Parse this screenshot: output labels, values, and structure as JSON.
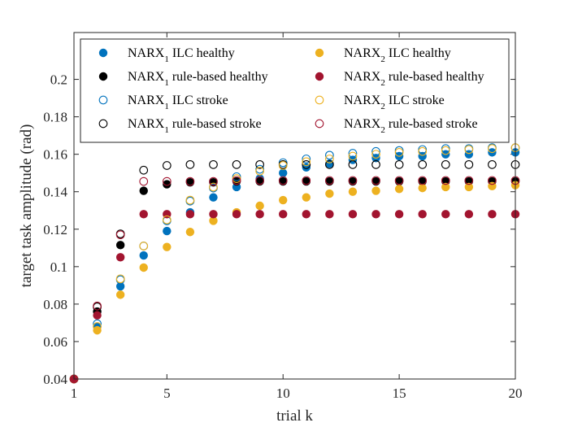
{
  "chart_data": {
    "type": "scatter",
    "title": "",
    "xlabel": "trial k",
    "ylabel": "target task amplitude (rad)",
    "xlim": [
      1,
      20
    ],
    "ylim": [
      0.04,
      0.225
    ],
    "xticks": [
      1,
      5,
      10,
      15,
      20
    ],
    "yticks": [
      0.04,
      0.06,
      0.08,
      0.1,
      0.12,
      0.14,
      0.16,
      0.18,
      0.2
    ],
    "ytick_labels": [
      "0.04",
      "0.06",
      "0.08",
      "0.1",
      "0.12",
      "0.14",
      "0.16",
      "0.18",
      "0.2"
    ],
    "grid": false,
    "legend_position": "top",
    "series": [
      {
        "name": "NARX1 ILC healthy",
        "legend_base": "NARX",
        "legend_sub": "1",
        "legend_rest": " ILC healthy",
        "color": "#0072BD",
        "marker": "filled",
        "x": [
          1,
          2,
          3,
          4,
          5,
          6,
          7,
          8,
          9,
          10,
          11,
          12,
          13,
          14,
          15,
          16,
          17,
          18,
          19,
          20
        ],
        "y": [
          0.04,
          0.068,
          0.0895,
          0.106,
          0.119,
          0.129,
          0.137,
          0.1425,
          0.147,
          0.15,
          0.153,
          0.155,
          0.157,
          0.158,
          0.159,
          0.159,
          0.16,
          0.16,
          0.161,
          0.161
        ]
      },
      {
        "name": "NARX1 rule-based healthy",
        "legend_base": "NARX",
        "legend_sub": "1",
        "legend_rest": " rule-based healthy",
        "color": "#000000",
        "marker": "filled",
        "x": [
          1,
          2,
          3,
          4,
          5,
          6,
          7,
          8,
          9,
          10,
          11,
          12,
          13,
          14,
          15,
          16,
          17,
          18,
          19,
          20
        ],
        "y": [
          0.04,
          0.076,
          0.1115,
          0.1405,
          0.144,
          0.145,
          0.145,
          0.1455,
          0.1455,
          0.1455,
          0.1455,
          0.1455,
          0.1455,
          0.1455,
          0.1455,
          0.1455,
          0.1455,
          0.1455,
          0.1455,
          0.1455
        ]
      },
      {
        "name": "NARX1 ILC stroke",
        "legend_base": "NARX",
        "legend_sub": "1",
        "legend_rest": " ILC stroke",
        "color": "#0072BD",
        "marker": "open",
        "x": [
          1,
          2,
          3,
          4,
          5,
          6,
          7,
          8,
          9,
          10,
          11,
          12,
          13,
          14,
          15,
          16,
          17,
          18,
          19,
          20
        ],
        "y": [
          0.04,
          0.0695,
          0.093,
          0.111,
          0.1245,
          0.135,
          0.142,
          0.148,
          0.152,
          0.1555,
          0.1575,
          0.1595,
          0.1605,
          0.1615,
          0.162,
          0.1625,
          0.163,
          0.163,
          0.1635,
          0.1635
        ]
      },
      {
        "name": "NARX1 rule-based stroke",
        "legend_base": "NARX",
        "legend_sub": "1",
        "legend_rest": " rule-based stroke",
        "color": "#000000",
        "marker": "open",
        "x": [
          1,
          2,
          3,
          4,
          5,
          6,
          7,
          8,
          9,
          10,
          11,
          12,
          13,
          14,
          15,
          16,
          17,
          18,
          19,
          20
        ],
        "y": [
          0.04,
          0.0785,
          0.1175,
          0.1515,
          0.154,
          0.1545,
          0.1545,
          0.1545,
          0.1545,
          0.1545,
          0.1545,
          0.1545,
          0.1545,
          0.1545,
          0.1545,
          0.1545,
          0.1545,
          0.1545,
          0.1545,
          0.1545
        ]
      },
      {
        "name": "NARX2 ILC healthy",
        "legend_base": "NARX",
        "legend_sub": "2",
        "legend_rest": " ILC healthy",
        "color": "#EDB120",
        "marker": "filled",
        "x": [
          1,
          2,
          3,
          4,
          5,
          6,
          7,
          8,
          9,
          10,
          11,
          12,
          13,
          14,
          15,
          16,
          17,
          18,
          19,
          20
        ],
        "y": [
          0.04,
          0.066,
          0.085,
          0.0995,
          0.1105,
          0.1185,
          0.1245,
          0.129,
          0.1325,
          0.1355,
          0.137,
          0.139,
          0.14,
          0.1405,
          0.1415,
          0.142,
          0.1425,
          0.1425,
          0.143,
          0.1435
        ]
      },
      {
        "name": "NARX2 rule-based healthy",
        "legend_base": "NARX",
        "legend_sub": "2",
        "legend_rest": " rule-based healthy",
        "color": "#A2142F",
        "marker": "filled",
        "x": [
          1,
          2,
          3,
          4,
          5,
          6,
          7,
          8,
          9,
          10,
          11,
          12,
          13,
          14,
          15,
          16,
          17,
          18,
          19,
          20
        ],
        "y": [
          0.04,
          0.074,
          0.105,
          0.128,
          0.128,
          0.128,
          0.128,
          0.128,
          0.128,
          0.128,
          0.128,
          0.128,
          0.128,
          0.128,
          0.128,
          0.128,
          0.128,
          0.128,
          0.128,
          0.128
        ]
      },
      {
        "name": "NARX2 ILC stroke",
        "legend_base": "NARX",
        "legend_sub": "2",
        "legend_rest": " ILC stroke",
        "color": "#EDB120",
        "marker": "open",
        "x": [
          1,
          2,
          3,
          4,
          5,
          6,
          7,
          8,
          9,
          10,
          11,
          12,
          13,
          14,
          15,
          16,
          17,
          18,
          19,
          20
        ],
        "y": [
          0.04,
          0.068,
          0.0935,
          0.111,
          0.125,
          0.1355,
          0.1425,
          0.147,
          0.151,
          0.154,
          0.156,
          0.1575,
          0.159,
          0.16,
          0.161,
          0.1615,
          0.162,
          0.1625,
          0.163,
          0.1635
        ]
      },
      {
        "name": "NARX2 rule-based stroke",
        "legend_base": "NARX",
        "legend_sub": "2",
        "legend_rest": " rule-based stroke",
        "color": "#A2142F",
        "marker": "open",
        "x": [
          1,
          2,
          3,
          4,
          5,
          6,
          7,
          8,
          9,
          10,
          11,
          12,
          13,
          14,
          15,
          16,
          17,
          18,
          19,
          20
        ],
        "y": [
          0.04,
          0.079,
          0.117,
          0.1455,
          0.1455,
          0.1455,
          0.1455,
          0.146,
          0.146,
          0.146,
          0.146,
          0.146,
          0.146,
          0.146,
          0.146,
          0.146,
          0.146,
          0.146,
          0.146,
          0.146
        ]
      }
    ]
  }
}
